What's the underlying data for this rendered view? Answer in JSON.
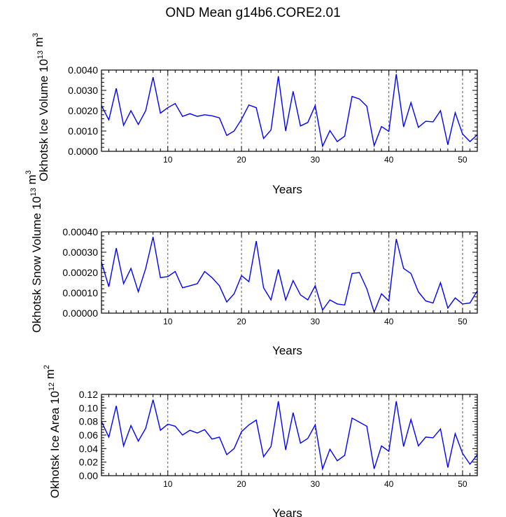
{
  "title": "OND Mean g14b6.CORE2.01",
  "colors": {
    "line": "#0000ff",
    "axis": "#000000",
    "grid": "#555555"
  },
  "chart_data": [
    {
      "type": "line",
      "title": "OND Mean g14b6.CORE2.01",
      "xlabel": "Years",
      "ylabel": "Okhotsk Ice Volume",
      "ylabel_unit": "10^13 m^3",
      "xlim": [
        1,
        52
      ],
      "ylim": [
        0,
        0.004
      ],
      "xticks": [
        10,
        20,
        30,
        40,
        50
      ],
      "xtick_labels": [
        "10",
        "20",
        "30",
        "40",
        "50"
      ],
      "yticks": [
        0,
        0.001,
        0.002,
        0.003,
        0.004
      ],
      "ytick_labels": [
        "0.0000",
        "0.0010",
        "0.0020",
        "0.0030",
        "0.0040"
      ],
      "vlines": [
        10,
        20,
        30,
        40,
        50
      ],
      "series": [
        {
          "name": "ice volume",
          "x": [
            1,
            2,
            3,
            4,
            5,
            6,
            7,
            8,
            9,
            10,
            11,
            12,
            13,
            14,
            15,
            16,
            17,
            18,
            19,
            20,
            21,
            22,
            23,
            24,
            25,
            26,
            27,
            28,
            29,
            30,
            31,
            32,
            33,
            34,
            35,
            36,
            37,
            38,
            39,
            40,
            41,
            42,
            43,
            44,
            45,
            46,
            47,
            48,
            49,
            50,
            51,
            52
          ],
          "values": [
            0.00225,
            0.00155,
            0.0031,
            0.00128,
            0.002,
            0.00132,
            0.002,
            0.00365,
            0.00188,
            0.00215,
            0.00235,
            0.00172,
            0.00185,
            0.00172,
            0.0018,
            0.00175,
            0.00165,
            0.00078,
            0.001,
            0.00158,
            0.00228,
            0.00215,
            0.00063,
            0.00105,
            0.0037,
            0.001,
            0.00295,
            0.00125,
            0.00142,
            0.00225,
            0.00025,
            0.00102,
            0.00048,
            0.00075,
            0.0027,
            0.00258,
            0.00222,
            0.00028,
            0.00122,
            0.00098,
            0.0038,
            0.0012,
            0.0024,
            0.00118,
            0.00148,
            0.00145,
            0.002,
            0.00032,
            0.0019,
            0.00085,
            0.00048,
            0.00082
          ]
        }
      ]
    },
    {
      "type": "line",
      "xlabel": "Years",
      "ylabel": "Okhotsk Snow Volume",
      "ylabel_unit": "10^13 m^3",
      "xlim": [
        1,
        52
      ],
      "ylim": [
        0,
        0.0004
      ],
      "xticks": [
        10,
        20,
        30,
        40,
        50
      ],
      "xtick_labels": [
        "10",
        "20",
        "30",
        "40",
        "50"
      ],
      "yticks": [
        0,
        0.0001,
        0.0002,
        0.0003,
        0.0004
      ],
      "ytick_labels": [
        "0.00000",
        "0.00010",
        "0.00020",
        "0.00030",
        "0.00040"
      ],
      "vlines": [
        10,
        20,
        30,
        40,
        50
      ],
      "series": [
        {
          "name": "snow volume",
          "x": [
            1,
            2,
            3,
            4,
            5,
            6,
            7,
            8,
            9,
            10,
            11,
            12,
            13,
            14,
            15,
            16,
            17,
            18,
            19,
            20,
            21,
            22,
            23,
            24,
            25,
            26,
            27,
            28,
            29,
            30,
            31,
            32,
            33,
            34,
            35,
            36,
            37,
            38,
            39,
            40,
            41,
            42,
            43,
            44,
            45,
            46,
            47,
            48,
            49,
            50,
            51,
            52
          ],
          "values": [
            0.00025,
            0.00013,
            0.00032,
            0.000145,
            0.00022,
            0.000105,
            0.00022,
            0.000375,
            0.000175,
            0.00018,
            0.000205,
            0.000125,
            0.000135,
            0.000145,
            0.000205,
            0.000175,
            0.000135,
            5.5e-05,
            9.5e-05,
            0.000185,
            0.000155,
            0.000355,
            0.000125,
            6.5e-05,
            0.000215,
            6.5e-05,
            0.00016,
            9e-05,
            6.5e-05,
            0.000135,
            1.5e-05,
            6.5e-05,
            4.5e-05,
            4e-05,
            0.000195,
            0.0002,
            0.00012,
            5e-06,
            9.5e-05,
            6e-05,
            0.000365,
            0.00022,
            0.000195,
            0.000105,
            6e-05,
            5e-05,
            0.00015,
            2.5e-05,
            7.5e-05,
            4.5e-05,
            5e-05,
            0.00011
          ]
        }
      ]
    },
    {
      "type": "line",
      "xlabel": "Years",
      "ylabel": "Okhotsk Ice Area",
      "ylabel_unit": "10^12 m^2",
      "xlim": [
        1,
        52
      ],
      "ylim": [
        0,
        0.12
      ],
      "xticks": [
        10,
        20,
        30,
        40,
        50
      ],
      "xtick_labels": [
        "10",
        "20",
        "30",
        "40",
        "50"
      ],
      "yticks": [
        0,
        0.02,
        0.04,
        0.06,
        0.08,
        0.1,
        0.12
      ],
      "ytick_labels": [
        "0.00",
        "0.02",
        "0.04",
        "0.06",
        "0.08",
        "0.10",
        "0.12"
      ],
      "vlines": [
        10,
        20,
        30,
        40,
        50
      ],
      "series": [
        {
          "name": "ice area",
          "x": [
            1,
            2,
            3,
            4,
            5,
            6,
            7,
            8,
            9,
            10,
            11,
            12,
            13,
            14,
            15,
            16,
            17,
            18,
            19,
            20,
            21,
            22,
            23,
            24,
            25,
            26,
            27,
            28,
            29,
            30,
            31,
            32,
            33,
            34,
            35,
            36,
            37,
            38,
            39,
            40,
            41,
            42,
            43,
            44,
            45,
            46,
            47,
            48,
            49,
            50,
            51,
            52
          ],
          "values": [
            0.08,
            0.057,
            0.103,
            0.044,
            0.074,
            0.051,
            0.07,
            0.112,
            0.067,
            0.076,
            0.073,
            0.06,
            0.067,
            0.063,
            0.068,
            0.054,
            0.057,
            0.031,
            0.04,
            0.065,
            0.075,
            0.082,
            0.028,
            0.043,
            0.11,
            0.038,
            0.093,
            0.048,
            0.055,
            0.075,
            0.01,
            0.039,
            0.022,
            0.03,
            0.085,
            0.079,
            0.073,
            0.01,
            0.044,
            0.036,
            0.11,
            0.043,
            0.083,
            0.044,
            0.057,
            0.056,
            0.069,
            0.012,
            0.062,
            0.033,
            0.017,
            0.031
          ]
        }
      ]
    }
  ]
}
